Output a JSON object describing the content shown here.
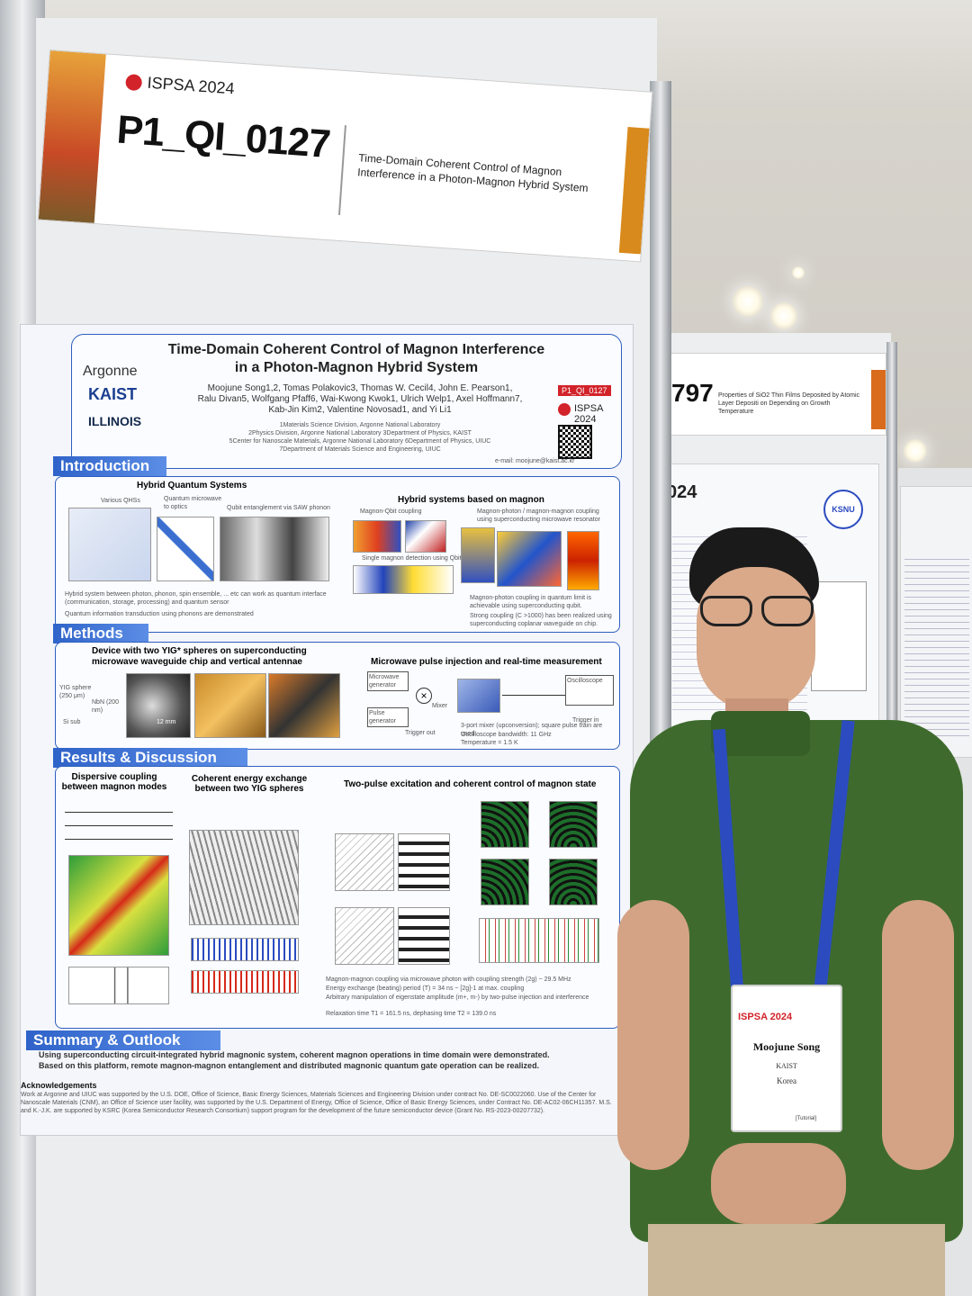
{
  "header": {
    "event": "ISPSA 2024",
    "poster_id": "P1_QI_0127",
    "title_line1": "Time-Domain Coherent Control of Magnon",
    "title_line2": "Interference in a Photon-Magnon Hybrid System"
  },
  "poster": {
    "title_line1": "Time-Domain Coherent Control of Magnon Interference",
    "title_line2": "in a Photon-Magnon Hybrid System",
    "authors_line1": "Moojune Song1,2, Tomas Polakovic3, Thomas W. Cecil4, John E. Pearson1,",
    "authors_line2": "Ralu Divan5, Wolfgang Pfaff6, Wai-Kwong Kwok1, Ulrich Welp1, Axel Hoffmann7,",
    "authors_line3": "Kab-Jin Kim2, Valentine Novosad1, and Yi Li1",
    "affil_line1": "1Materials Science Division, Argonne National Laboratory",
    "affil_line2": "2Physics Division, Argonne National Laboratory 3Department of Physics, KAIST",
    "affil_line3": "5Center for Nanoscale Materials, Argonne National Laboratory 6Department of Physics, UIUC",
    "affil_line4": "7Department of Materials Science and Engineering, UIUC",
    "logos": [
      "Argonne",
      "KAIST",
      "ILLINOIS"
    ],
    "poster_id_badge": "P1_QI_0127",
    "event_badge": "ISPSA 2024",
    "email": "e-mail: moojune@kaist.ac.kr",
    "sections": {
      "intro": "Introduction",
      "methods": "Methods",
      "results": "Results & Discussion",
      "summary": "Summary & Outlook"
    },
    "intro": {
      "left_title": "Hybrid Quantum Systems",
      "right_title": "Hybrid systems based on magnon",
      "left_labels": [
        "Various QHSs",
        "Quantum microwave to optics",
        "Qubit entanglement via SAW phonon"
      ],
      "right_labels": [
        "Magnon-Qbit coupling",
        "Magnon-photon / magnon-magnon coupling using superconducting microwave resonator",
        "Single magnon detection using Qbit"
      ],
      "left_bullets": [
        "Hybrid system between photon, phonon, spin ensemble, ... etc can work as quantum interface (communication, storage, processing) and quantum sensor",
        "Quantum information transduction using phonons are demonstrated"
      ],
      "right_bullets": [
        "Magnon-photon coupling in quantum limit is achievable using superconducting qubit.",
        "Strong coupling (C >1000) has been realized using superconducting coplanar waveguide on chip."
      ]
    },
    "methods": {
      "left_title_line1": "Device with two YIG* spheres on superconducting",
      "left_title_line2": "microwave waveguide chip and vertical antennae",
      "right_title": "Microwave pulse injection and real-time measurement",
      "labels": [
        "YIG sphere (250 μm)",
        "NbN (200 nm)",
        "Si sub",
        "12 mm",
        "Microwave generator",
        "Pulse generator",
        "Oscilloscope",
        "Trigger out",
        "Trigger in",
        "Mixer"
      ],
      "notes": [
        "3-port mixer (upconversion); square pulse train are used",
        "Oscilloscope bandwidth: 11 GHz",
        "Temperature = 1.5 K"
      ]
    },
    "results": {
      "titles": [
        "Dispersive coupling between magnon modes",
        "Coherent energy exchange between two YIG spheres",
        "Two-pulse excitation and coherent control of magnon state"
      ],
      "bullets": [
        "Magnon-magnon coupling via microwave photon with coupling strength (2g) ~ 29.5 MHz",
        "Energy exchange (beating) period (T) = 34 ns ~ [2g]-1 at max. coupling",
        "Arbitrary manipulation of eigenstate amplitude (m+, m-) by two-pulse injection and interference",
        "Relaxation time T1 = 161.5 ns, dephasing time T2 = 139.0 ns"
      ]
    },
    "summary": {
      "bullets": [
        "Using superconducting circuit-integrated hybrid magnonic system, coherent magnon operations in time domain were demonstrated.",
        "Based on this platform, remote magnon-magnon entanglement and distributed magnonic quantum gate operation can be realized."
      ],
      "ack_title": "Acknowledgements",
      "ack_text": "Work at Argonne and UIUC was supported by the U.S. DOE, Office of Science, Basic Energy Sciences, Materials Sciences and Engineering Division under contract No. DE-SC0022060. Use of the Center for Nanoscale Materials (CNM), an Office of Science user facility, was supported by the U.S. Department of Energy, Office of Science, Office of Basic Energy Sciences, under Contract No. DE-AC02-06CH11357. M.S. and K.-J.K. are supported by KSRC (Korea Semiconductor Research Consortium) support program for the development of the future semiconductor device (Grant No. RS-2023-00207732)."
    }
  },
  "side_poster": {
    "id": "797",
    "title": "Properties of SiO2 Thin Films Deposited by Atomic Layer Depositi on Depending on Growth Temperature",
    "badge": "KSNU",
    "event_fragment": "024"
  },
  "name_tag": {
    "event": "ISPSA 2024",
    "name": "Moojune Song",
    "affiliation": "KAIST",
    "country": "Korea",
    "role": "[Tutorial]"
  },
  "colors": {
    "shirt": "#3e6b2d",
    "lanyard": "#2b4bbf",
    "accent_red": "#d2232a",
    "poster_blue": "#2f5fbf"
  }
}
